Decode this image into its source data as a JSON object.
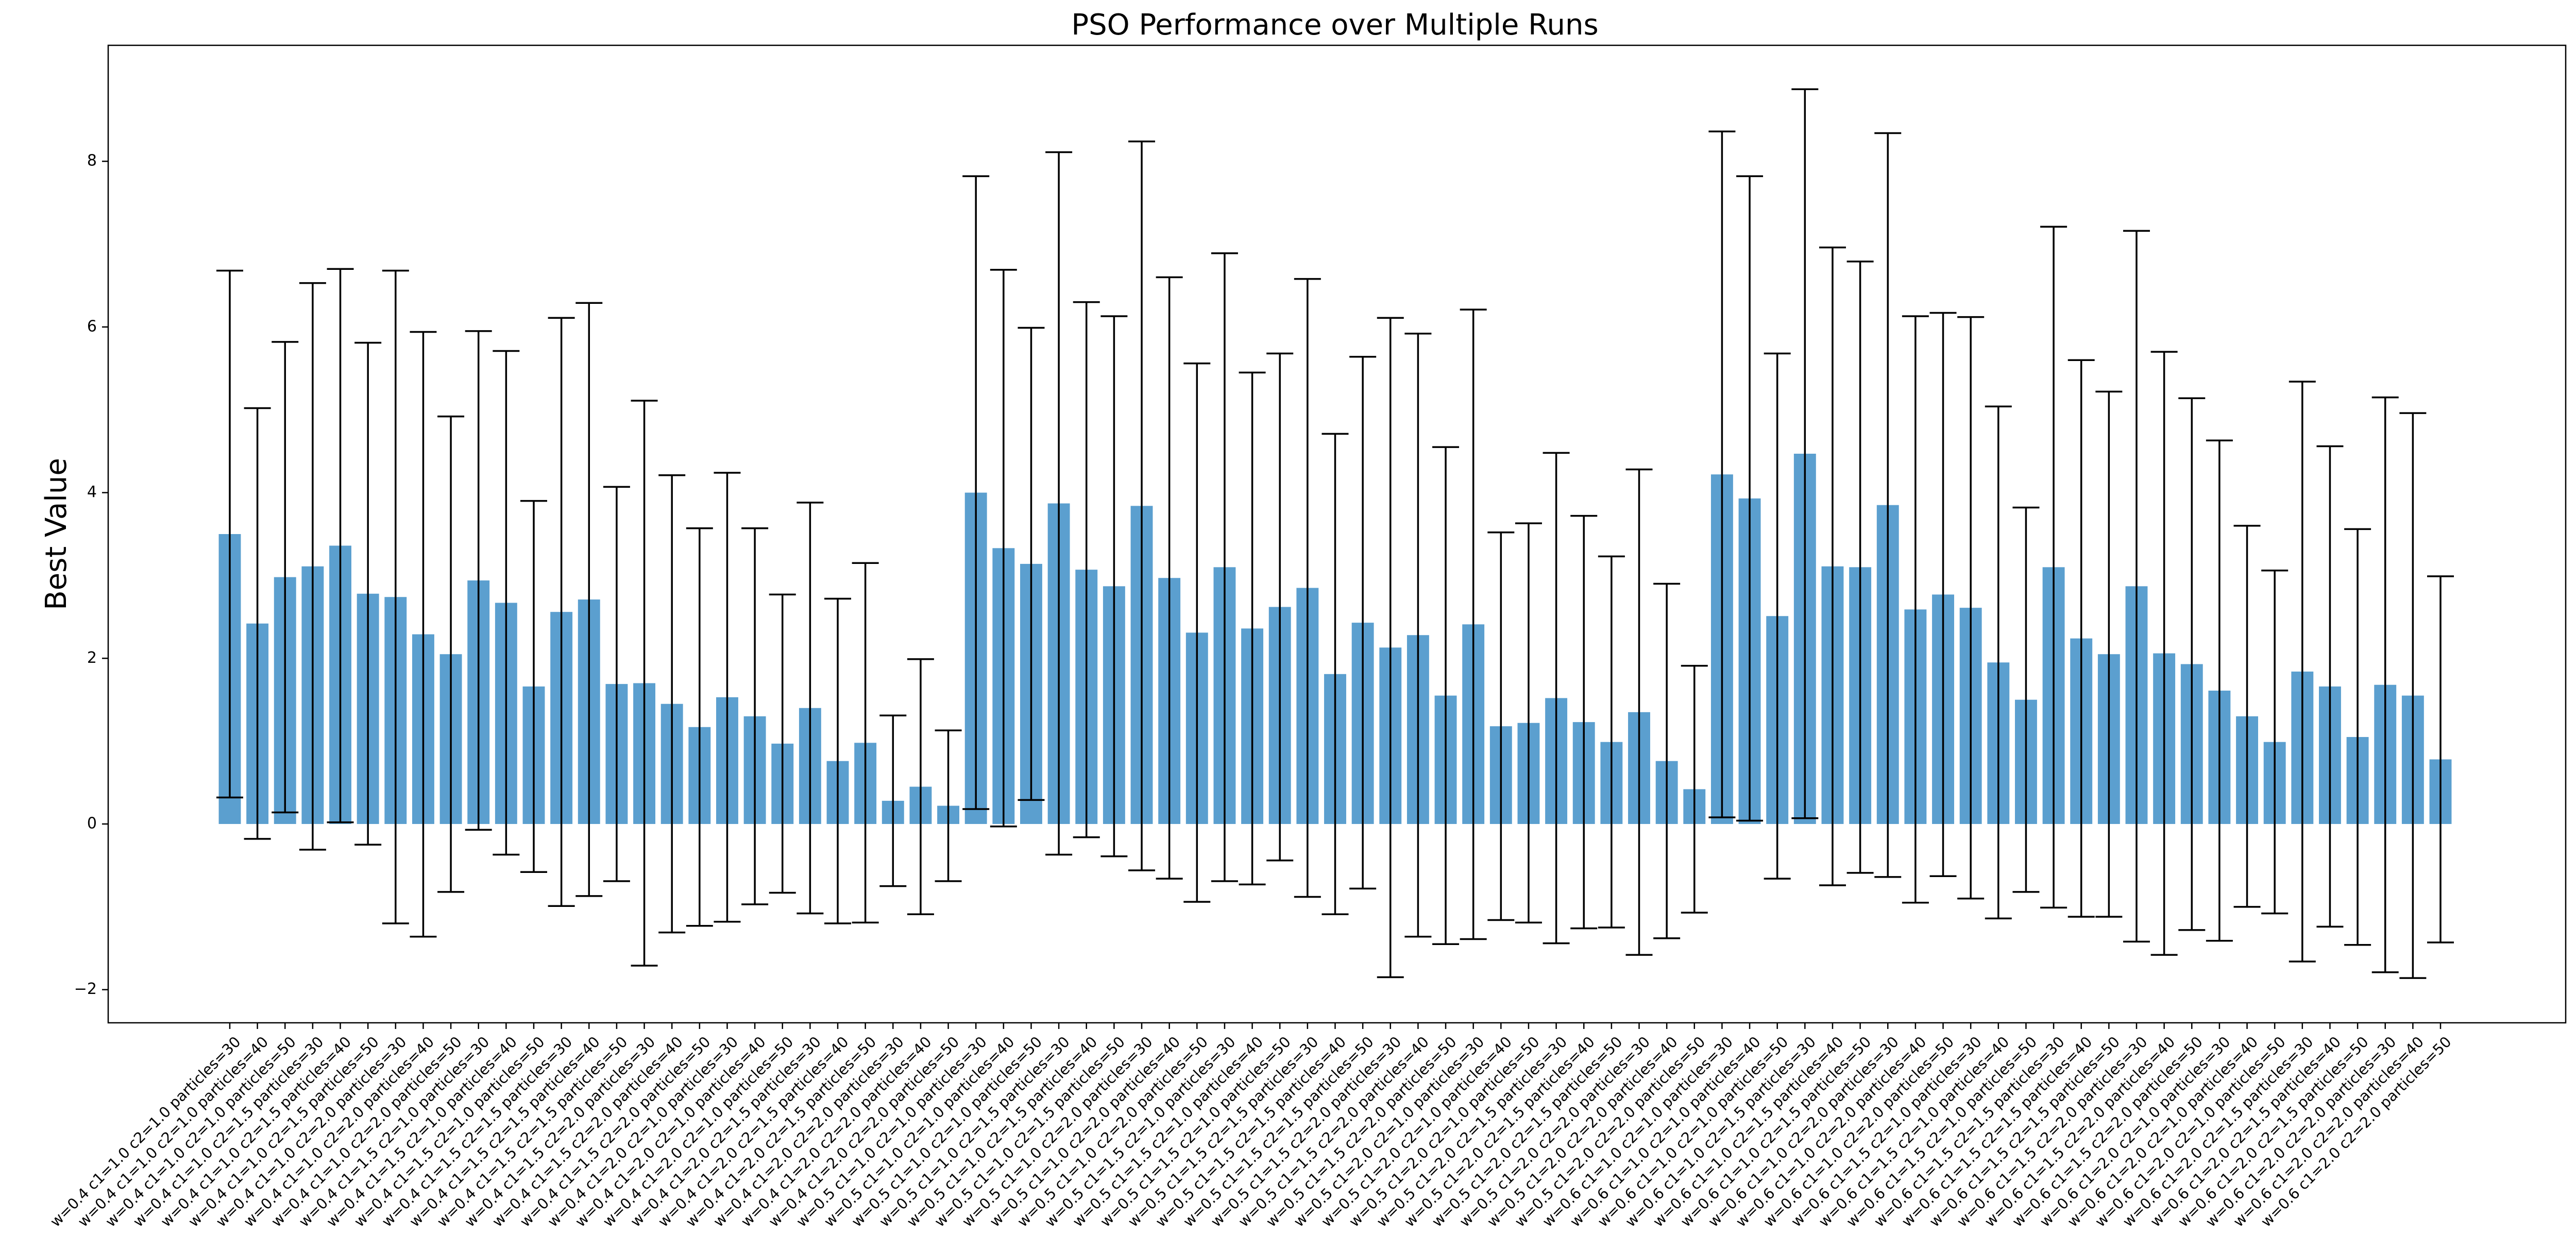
{
  "chart_data": {
    "type": "bar",
    "title": "PSO Performance over Multiple Runs",
    "xlabel": "",
    "ylabel": "Best Value",
    "ylim": [
      -2.4,
      9.4
    ],
    "yticks": [
      -2,
      0,
      2,
      4,
      6,
      8
    ],
    "ytick_labels": [
      "−2",
      "0",
      "2",
      "4",
      "6",
      "8"
    ],
    "grid": false,
    "legend": "none",
    "bar_color": "#5b9fcf",
    "error_bar_color": "#000000",
    "categories": [
      "w=0.4 c1=1.0 c2=1.0 particles=30",
      "w=0.4 c1=1.0 c2=1.0 particles=40",
      "w=0.4 c1=1.0 c2=1.0 particles=50",
      "w=0.4 c1=1.0 c2=1.5 particles=30",
      "w=0.4 c1=1.0 c2=1.5 particles=40",
      "w=0.4 c1=1.0 c2=1.5 particles=50",
      "w=0.4 c1=1.0 c2=2.0 particles=30",
      "w=0.4 c1=1.0 c2=2.0 particles=40",
      "w=0.4 c1=1.0 c2=2.0 particles=50",
      "w=0.4 c1=1.5 c2=1.0 particles=30",
      "w=0.4 c1=1.5 c2=1.0 particles=40",
      "w=0.4 c1=1.5 c2=1.0 particles=50",
      "w=0.4 c1=1.5 c2=1.5 particles=30",
      "w=0.4 c1=1.5 c2=1.5 particles=40",
      "w=0.4 c1=1.5 c2=1.5 particles=50",
      "w=0.4 c1=1.5 c2=2.0 particles=30",
      "w=0.4 c1=1.5 c2=2.0 particles=40",
      "w=0.4 c1=1.5 c2=2.0 particles=50",
      "w=0.4 c1=2.0 c2=1.0 particles=30",
      "w=0.4 c1=2.0 c2=1.0 particles=40",
      "w=0.4 c1=2.0 c2=1.0 particles=50",
      "w=0.4 c1=2.0 c2=1.5 particles=30",
      "w=0.4 c1=2.0 c2=1.5 particles=40",
      "w=0.4 c1=2.0 c2=1.5 particles=50",
      "w=0.4 c1=2.0 c2=2.0 particles=30",
      "w=0.4 c1=2.0 c2=2.0 particles=40",
      "w=0.4 c1=2.0 c2=2.0 particles=50",
      "w=0.5 c1=1.0 c2=1.0 particles=30",
      "w=0.5 c1=1.0 c2=1.0 particles=40",
      "w=0.5 c1=1.0 c2=1.0 particles=50",
      "w=0.5 c1=1.0 c2=1.5 particles=30",
      "w=0.5 c1=1.0 c2=1.5 particles=40",
      "w=0.5 c1=1.0 c2=1.5 particles=50",
      "w=0.5 c1=1.0 c2=2.0 particles=30",
      "w=0.5 c1=1.0 c2=2.0 particles=40",
      "w=0.5 c1=1.0 c2=2.0 particles=50",
      "w=0.5 c1=1.5 c2=1.0 particles=30",
      "w=0.5 c1=1.5 c2=1.0 particles=40",
      "w=0.5 c1=1.5 c2=1.0 particles=50",
      "w=0.5 c1=1.5 c2=1.5 particles=30",
      "w=0.5 c1=1.5 c2=1.5 particles=40",
      "w=0.5 c1=1.5 c2=1.5 particles=50",
      "w=0.5 c1=1.5 c2=2.0 particles=30",
      "w=0.5 c1=1.5 c2=2.0 particles=40",
      "w=0.5 c1=1.5 c2=2.0 particles=50",
      "w=0.5 c1=2.0 c2=1.0 particles=30",
      "w=0.5 c1=2.0 c2=1.0 particles=40",
      "w=0.5 c1=2.0 c2=1.0 particles=50",
      "w=0.5 c1=2.0 c2=1.5 particles=30",
      "w=0.5 c1=2.0 c2=1.5 particles=40",
      "w=0.5 c1=2.0 c2=1.5 particles=50",
      "w=0.5 c1=2.0 c2=2.0 particles=30",
      "w=0.5 c1=2.0 c2=2.0 particles=40",
      "w=0.5 c1=2.0 c2=2.0 particles=50",
      "w=0.6 c1=1.0 c2=1.0 particles=30",
      "w=0.6 c1=1.0 c2=1.0 particles=40",
      "w=0.6 c1=1.0 c2=1.0 particles=50",
      "w=0.6 c1=1.0 c2=1.5 particles=30",
      "w=0.6 c1=1.0 c2=1.5 particles=40",
      "w=0.6 c1=1.0 c2=1.5 particles=50",
      "w=0.6 c1=1.0 c2=2.0 particles=30",
      "w=0.6 c1=1.0 c2=2.0 particles=40",
      "w=0.6 c1=1.0 c2=2.0 particles=50",
      "w=0.6 c1=1.5 c2=1.0 particles=30",
      "w=0.6 c1=1.5 c2=1.0 particles=40",
      "w=0.6 c1=1.5 c2=1.0 particles=50",
      "w=0.6 c1=1.5 c2=1.5 particles=30",
      "w=0.6 c1=1.5 c2=1.5 particles=40",
      "w=0.6 c1=1.5 c2=1.5 particles=50",
      "w=0.6 c1=1.5 c2=2.0 particles=30",
      "w=0.6 c1=1.5 c2=2.0 particles=40",
      "w=0.6 c1=1.5 c2=2.0 particles=50",
      "w=0.6 c1=2.0 c2=1.0 particles=30",
      "w=0.6 c1=2.0 c2=1.0 particles=40",
      "w=0.6 c1=2.0 c2=1.0 particles=50",
      "w=0.6 c1=2.0 c2=1.5 particles=30",
      "w=0.6 c1=2.0 c2=1.5 particles=40",
      "w=0.6 c1=2.0 c2=1.5 particles=50",
      "w=0.6 c1=2.0 c2=2.0 particles=30",
      "w=0.6 c1=2.0 c2=2.0 particles=40",
      "w=0.6 c1=2.0 c2=2.0 particles=50"
    ],
    "values": [
      3.5,
      2.42,
      2.98,
      3.11,
      3.36,
      2.78,
      2.74,
      2.29,
      2.05,
      2.94,
      2.67,
      1.66,
      2.56,
      2.71,
      1.69,
      1.7,
      1.45,
      1.17,
      1.53,
      1.3,
      0.97,
      1.4,
      0.76,
      0.98,
      0.28,
      0.45,
      0.22,
      4.0,
      3.33,
      3.14,
      3.87,
      3.07,
      2.87,
      3.84,
      2.97,
      2.31,
      3.1,
      2.36,
      2.62,
      2.85,
      1.81,
      2.43,
      2.13,
      2.28,
      1.55,
      2.41,
      1.18,
      1.22,
      1.52,
      1.23,
      0.99,
      1.35,
      0.76,
      0.42,
      4.22,
      3.93,
      2.51,
      4.47,
      3.11,
      3.1,
      3.85,
      2.59,
      2.77,
      2.61,
      1.95,
      1.5,
      3.1,
      2.24,
      2.05,
      2.87,
      2.06,
      1.93,
      1.61,
      1.3,
      0.99,
      1.84,
      1.66,
      1.05,
      1.68,
      1.55,
      0.78
    ],
    "errors": [
      3.18,
      2.6,
      2.84,
      3.42,
      3.34,
      3.03,
      3.94,
      3.65,
      2.87,
      3.01,
      3.04,
      2.24,
      3.55,
      3.58,
      2.38,
      3.41,
      2.76,
      2.4,
      2.71,
      2.27,
      1.8,
      2.48,
      1.96,
      2.17,
      1.03,
      1.54,
      0.91,
      3.82,
      3.36,
      2.85,
      4.24,
      3.23,
      3.26,
      4.4,
      3.63,
      3.25,
      3.79,
      3.09,
      3.06,
      3.73,
      2.9,
      3.21,
      3.98,
      3.64,
      3.0,
      3.8,
      2.34,
      2.41,
      2.96,
      2.49,
      2.24,
      2.93,
      2.14,
      1.49,
      4.14,
      3.89,
      3.17,
      4.4,
      3.85,
      3.69,
      4.49,
      3.54,
      3.4,
      3.51,
      3.09,
      2.32,
      4.11,
      3.36,
      3.17,
      4.29,
      3.64,
      3.21,
      3.02,
      2.3,
      2.07,
      3.5,
      2.9,
      2.51,
      3.47,
      3.41,
      2.21
    ]
  }
}
